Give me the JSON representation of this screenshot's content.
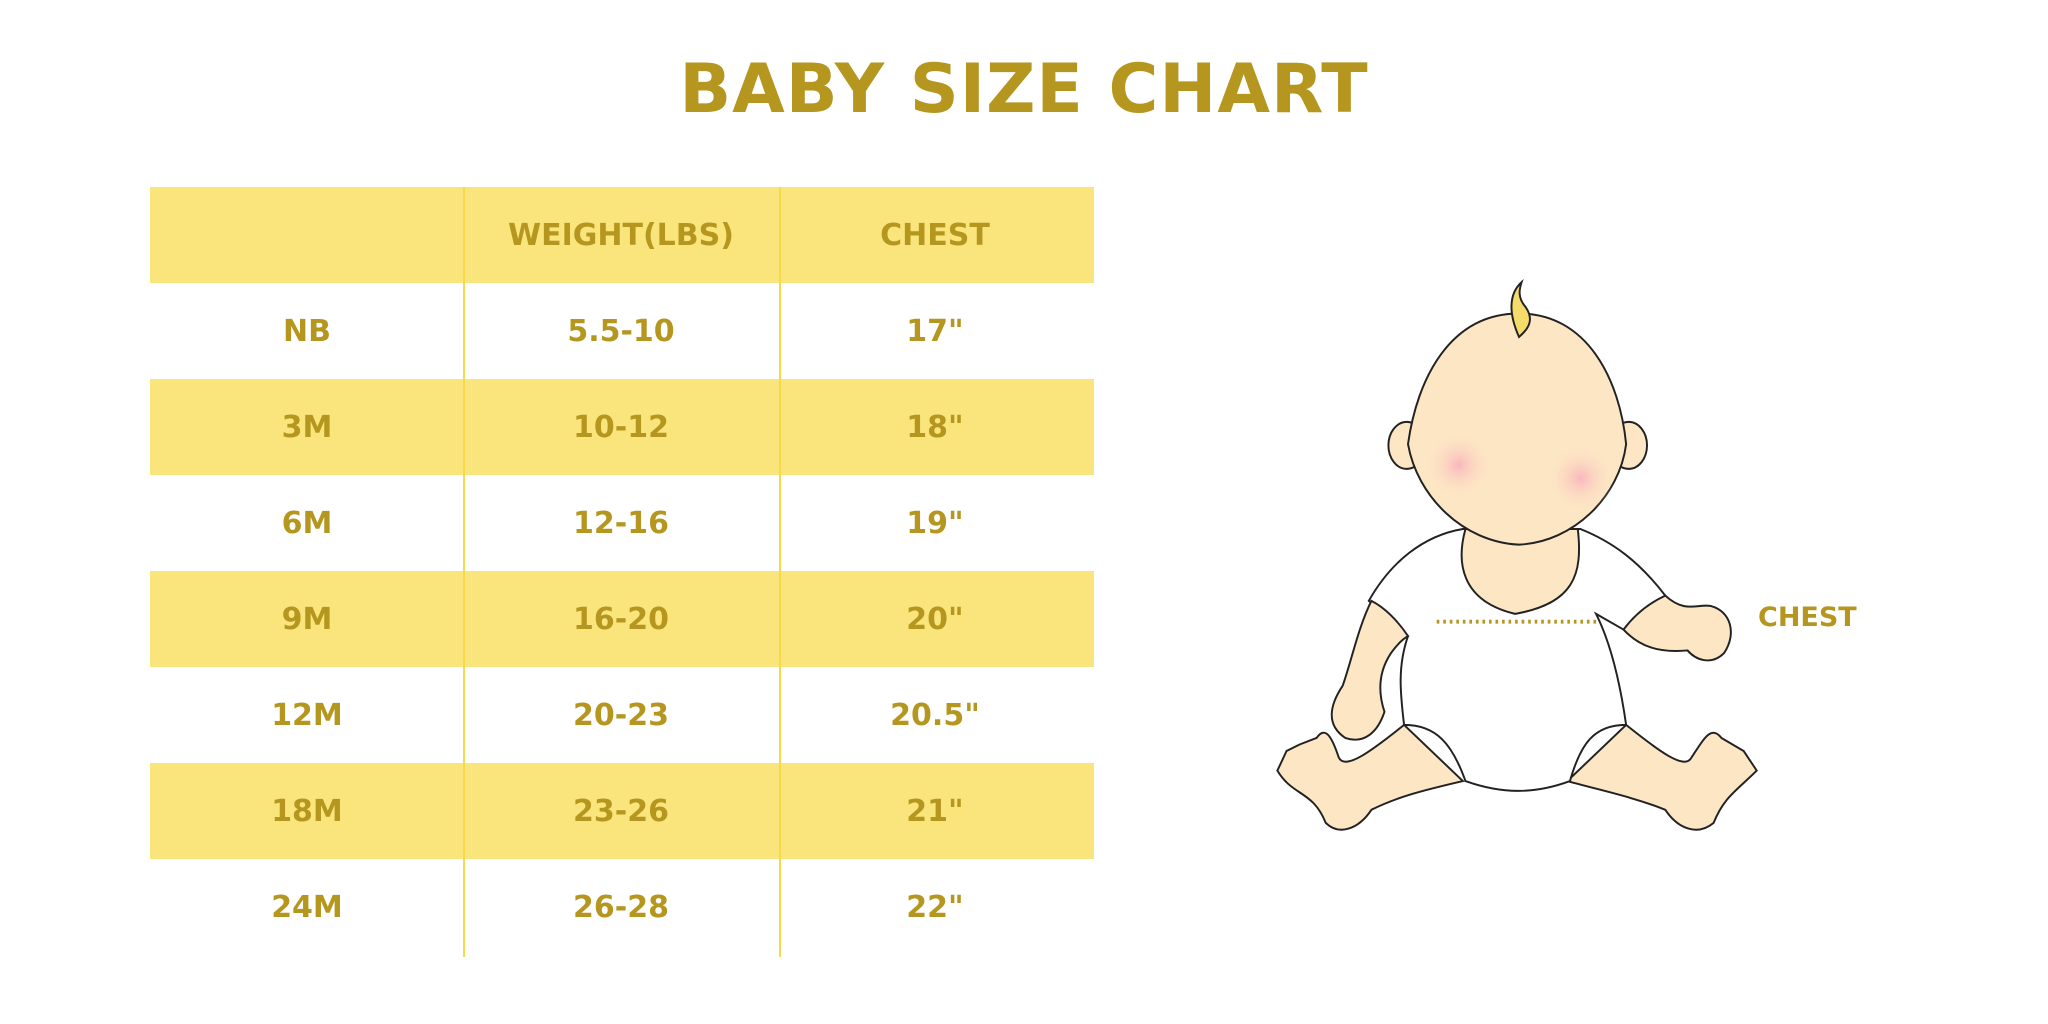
{
  "title": "BABY SIZE CHART",
  "colors": {
    "text": "#b5961f",
    "row_shade": "#fae57d",
    "divider": "#f7d94a",
    "skin": "#fde6c4",
    "cheek": "#f9b6bd",
    "hair": "#f5dc6a"
  },
  "table": {
    "headers": [
      "",
      "WEIGHT(LBS)",
      "CHEST"
    ],
    "rows": [
      [
        "NB",
        "5.5-10",
        "17\""
      ],
      [
        "3M",
        "10-12",
        "18\""
      ],
      [
        "6M",
        "12-16",
        "19\""
      ],
      [
        "9M",
        "16-20",
        "20\""
      ],
      [
        "12M",
        "20-23",
        "20.5\""
      ],
      [
        "18M",
        "23-26",
        "21\""
      ],
      [
        "24M",
        "26-28",
        "22\""
      ]
    ]
  },
  "illustration": {
    "chest_label": "CHEST"
  }
}
